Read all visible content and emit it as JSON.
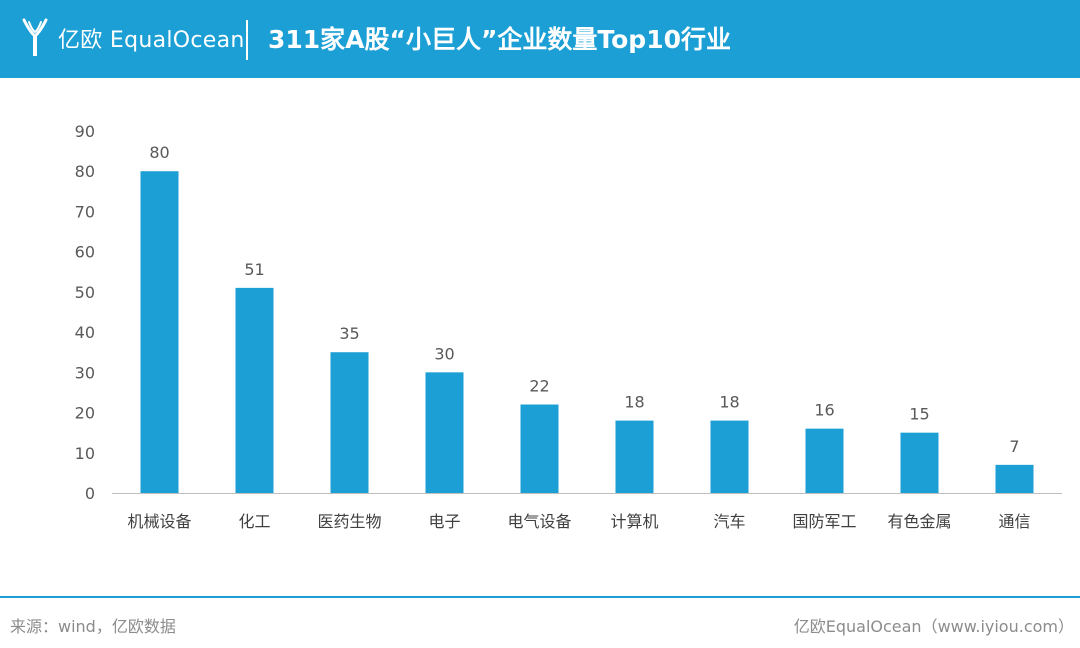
{
  "header": {
    "brand": "亿欧 EqualOcean",
    "title": "311家A股“小巨人”企业数量Top10行业",
    "logo_icon": "equalocean-logo-icon",
    "background_color": "#1b9fd5"
  },
  "chart_data": {
    "type": "bar",
    "title": "311家A股“小巨人”企业数量Top10行业",
    "categories": [
      "机械设备",
      "化工",
      "医药生物",
      "电子",
      "电气设备",
      "计算机",
      "汽车",
      "国防军工",
      "有色金属",
      "通信"
    ],
    "values": [
      80,
      51,
      35,
      30,
      22,
      18,
      18,
      16,
      15,
      7
    ],
    "xlabel": "",
    "ylabel": "",
    "ylim": [
      0,
      90
    ],
    "yticks": [
      0,
      10,
      20,
      30,
      40,
      50,
      60,
      70,
      80,
      90
    ],
    "grid": false,
    "legend": "none",
    "data_labels": true,
    "bar_color": "#1b9fd5"
  },
  "footer": {
    "source": "来源：wind，亿欧数据",
    "credit": "亿欧EqualOcean（www.iyiou.com）"
  }
}
